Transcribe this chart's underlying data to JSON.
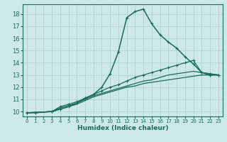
{
  "xlabel": "Humidex (Indice chaleur)",
  "bg_color": "#cde8e8",
  "line_color": "#1a6b5a",
  "grid_color": "#aacfcf",
  "xlim": [
    -0.5,
    23.5
  ],
  "ylim": [
    9.6,
    18.8
  ],
  "xticks": [
    0,
    1,
    2,
    3,
    4,
    5,
    6,
    7,
    8,
    9,
    10,
    11,
    12,
    13,
    14,
    15,
    16,
    17,
    18,
    19,
    20,
    21,
    22,
    23
  ],
  "yticks": [
    10,
    11,
    12,
    13,
    14,
    15,
    16,
    17,
    18
  ],
  "series": [
    {
      "x": [
        0,
        1,
        3,
        4,
        5,
        6,
        7,
        8,
        9,
        10,
        11,
        12,
        13,
        14,
        15,
        16,
        17,
        18,
        19,
        20,
        21,
        22,
        23
      ],
      "y": [
        9.9,
        9.9,
        10.0,
        10.2,
        10.4,
        10.7,
        11.1,
        11.4,
        12.0,
        13.1,
        14.9,
        17.7,
        18.2,
        18.4,
        17.2,
        16.3,
        15.7,
        15.2,
        14.5,
        13.9,
        13.2,
        13.0,
        13.0
      ],
      "marker": true,
      "lw": 1.1
    },
    {
      "x": [
        0,
        3,
        4,
        5,
        6,
        7,
        8,
        9,
        10,
        11,
        12,
        13,
        14,
        15,
        16,
        17,
        18,
        19,
        20,
        21,
        22,
        23
      ],
      "y": [
        9.9,
        10.0,
        10.4,
        10.6,
        10.8,
        11.1,
        11.4,
        11.7,
        12.0,
        12.2,
        12.5,
        12.8,
        13.0,
        13.2,
        13.4,
        13.6,
        13.8,
        14.0,
        14.2,
        13.2,
        13.1,
        13.0
      ],
      "marker": true,
      "lw": 0.9
    },
    {
      "x": [
        0,
        3,
        4,
        5,
        6,
        7,
        8,
        9,
        10,
        11,
        12,
        13,
        14,
        15,
        16,
        17,
        18,
        19,
        20,
        21,
        22,
        23
      ],
      "y": [
        9.9,
        10.0,
        10.3,
        10.5,
        10.7,
        11.0,
        11.3,
        11.5,
        11.7,
        11.9,
        12.1,
        12.3,
        12.5,
        12.6,
        12.8,
        13.0,
        13.1,
        13.2,
        13.3,
        13.2,
        13.1,
        13.0
      ],
      "marker": false,
      "lw": 0.9
    },
    {
      "x": [
        0,
        3,
        4,
        5,
        6,
        7,
        8,
        9,
        10,
        11,
        12,
        13,
        14,
        15,
        16,
        17,
        18,
        19,
        20,
        21,
        22,
        23
      ],
      "y": [
        9.9,
        10.0,
        10.2,
        10.4,
        10.6,
        10.9,
        11.2,
        11.4,
        11.6,
        11.8,
        12.0,
        12.1,
        12.3,
        12.4,
        12.5,
        12.6,
        12.7,
        12.8,
        12.9,
        13.0,
        13.0,
        13.0
      ],
      "marker": false,
      "lw": 0.9
    }
  ]
}
